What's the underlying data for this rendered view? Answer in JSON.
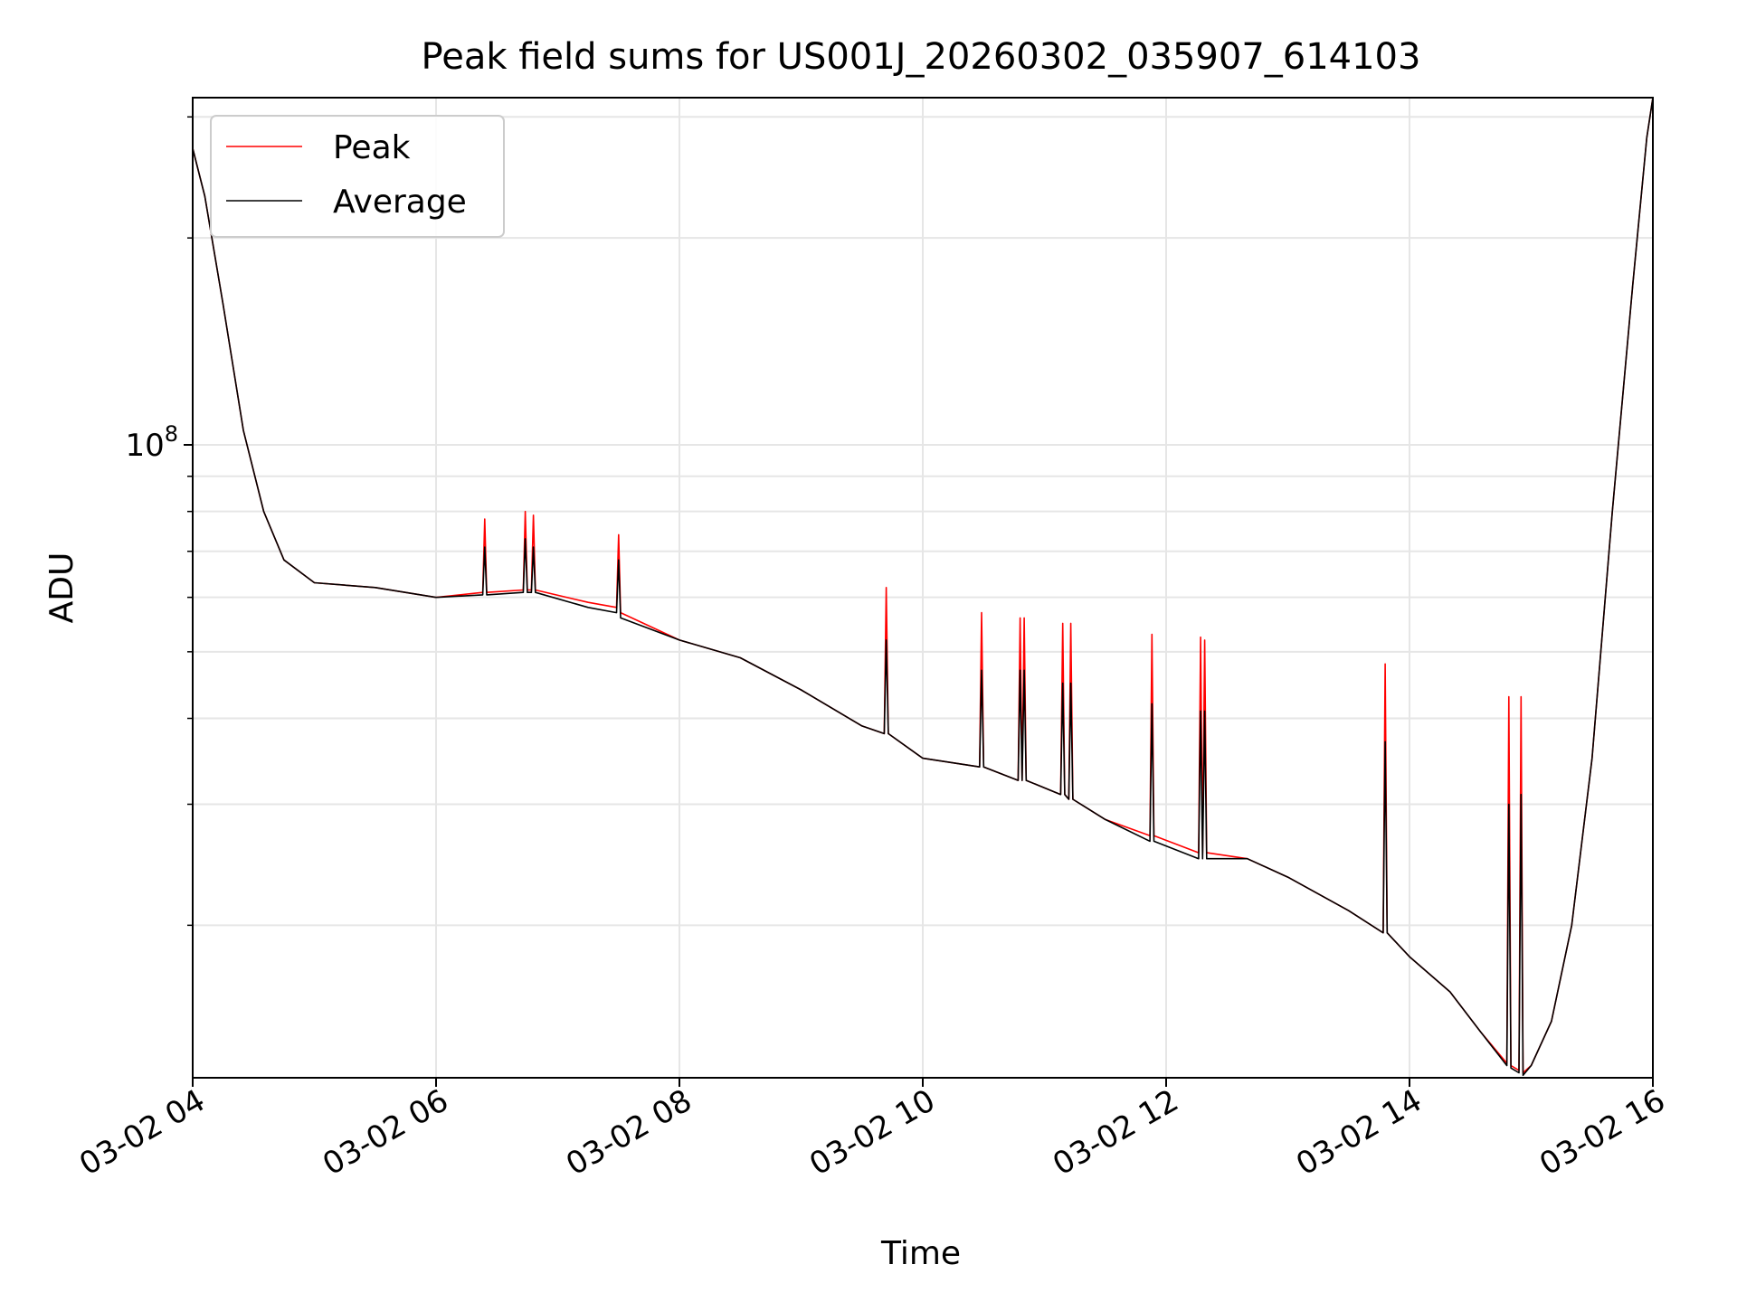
{
  "chart_data": {
    "type": "line",
    "title": "Peak field sums for US001J_20260302_035907_614103",
    "xlabel": "Time",
    "ylabel": "ADU",
    "x_scale": "time",
    "y_scale": "log",
    "xlim": [
      "2026-03-02 04:00",
      "2026-03-02 16:00"
    ],
    "ylim": [
      12000000.0,
      320000000.0
    ],
    "x_ticks": [
      {
        "value": "2026-03-02 04:00",
        "label": "03-02 04"
      },
      {
        "value": "2026-03-02 06:00",
        "label": "03-02 06"
      },
      {
        "value": "2026-03-02 08:00",
        "label": "03-02 08"
      },
      {
        "value": "2026-03-02 10:00",
        "label": "03-02 10"
      },
      {
        "value": "2026-03-02 12:00",
        "label": "03-02 12"
      },
      {
        "value": "2026-03-02 14:00",
        "label": "03-02 14"
      },
      {
        "value": "2026-03-02 16:00",
        "label": "03-02 16"
      }
    ],
    "y_major_ticks": [
      {
        "value": 100000000,
        "label_base": "10",
        "label_exp": "8"
      }
    ],
    "y_minor_ticks": [
      20000000,
      30000000,
      40000000,
      50000000,
      60000000,
      70000000,
      80000000,
      90000000,
      200000000,
      300000000
    ],
    "grid": true,
    "legend_position": "top-left",
    "series": [
      {
        "name": "Peak",
        "color": "#ff0000",
        "x": [
          "2026-03-02 04:00",
          "2026-03-02 04:06",
          "2026-03-02 04:15",
          "2026-03-02 04:25",
          "2026-03-02 04:35",
          "2026-03-02 04:45",
          "2026-03-02 05:00",
          "2026-03-02 05:30",
          "2026-03-02 06:00",
          "2026-03-02 06:23",
          "2026-03-02 06:24",
          "2026-03-02 06:25",
          "2026-03-02 06:43",
          "2026-03-02 06:44",
          "2026-03-02 06:45",
          "2026-03-02 06:47",
          "2026-03-02 06:48",
          "2026-03-02 06:49",
          "2026-03-02 07:15",
          "2026-03-02 07:29",
          "2026-03-02 07:30",
          "2026-03-02 07:31",
          "2026-03-02 08:00",
          "2026-03-02 08:30",
          "2026-03-02 09:00",
          "2026-03-02 09:30",
          "2026-03-02 09:41",
          "2026-03-02 09:42",
          "2026-03-02 09:43",
          "2026-03-02 10:00",
          "2026-03-02 10:28",
          "2026-03-02 10:29",
          "2026-03-02 10:30",
          "2026-03-02 10:47",
          "2026-03-02 10:48",
          "2026-03-02 10:49",
          "2026-03-02 10:50",
          "2026-03-02 10:51",
          "2026-03-02 11:08",
          "2026-03-02 11:09",
          "2026-03-02 11:10",
          "2026-03-02 11:12",
          "2026-03-02 11:13",
          "2026-03-02 11:14",
          "2026-03-02 11:30",
          "2026-03-02 11:52",
          "2026-03-02 11:53",
          "2026-03-02 11:54",
          "2026-03-02 12:16",
          "2026-03-02 12:17",
          "2026-03-02 12:18",
          "2026-03-02 12:19",
          "2026-03-02 12:20",
          "2026-03-02 12:40",
          "2026-03-02 13:00",
          "2026-03-02 13:30",
          "2026-03-02 13:47",
          "2026-03-02 13:48",
          "2026-03-02 13:49",
          "2026-03-02 14:00",
          "2026-03-02 14:20",
          "2026-03-02 14:35",
          "2026-03-02 14:48",
          "2026-03-02 14:49",
          "2026-03-02 14:50",
          "2026-03-02 14:54",
          "2026-03-02 14:55",
          "2026-03-02 14:56",
          "2026-03-02 15:00",
          "2026-03-02 15:10",
          "2026-03-02 15:20",
          "2026-03-02 15:30",
          "2026-03-02 15:40",
          "2026-03-02 15:50",
          "2026-03-02 15:57",
          "2026-03-02 16:00"
        ],
        "y": [
          270000000,
          230000000,
          160000000,
          105000000,
          80000000,
          68000000,
          63000000,
          62000000,
          60000000,
          61000000,
          78000000,
          61000000,
          61500000,
          80000000,
          61500000,
          61500000,
          79000000,
          61500000,
          59000000,
          58000000,
          74000000,
          57000000,
          52000000,
          49000000,
          44000000,
          39000000,
          38000000,
          62000000,
          38000000,
          35000000,
          34000000,
          57000000,
          34000000,
          32500000,
          56000000,
          32500000,
          56000000,
          32500000,
          31000000,
          55000000,
          31000000,
          30500000,
          55000000,
          30500000,
          28500000,
          27000000,
          53000000,
          27000000,
          25500000,
          52500000,
          25500000,
          52000000,
          25500000,
          25000000,
          23500000,
          21000000,
          19500000,
          48000000,
          19500000,
          18000000,
          16000000,
          14000000,
          12600000,
          43000000,
          12500000,
          12300000,
          43000000,
          12200000,
          12500000,
          14500000,
          20000000,
          35000000,
          80000000,
          170000000,
          280000000,
          320000000
        ]
      },
      {
        "name": "Average",
        "color": "#000000",
        "x": [
          "2026-03-02 04:00",
          "2026-03-02 04:06",
          "2026-03-02 04:15",
          "2026-03-02 04:25",
          "2026-03-02 04:35",
          "2026-03-02 04:45",
          "2026-03-02 05:00",
          "2026-03-02 05:30",
          "2026-03-02 06:00",
          "2026-03-02 06:23",
          "2026-03-02 06:24",
          "2026-03-02 06:25",
          "2026-03-02 06:43",
          "2026-03-02 06:44",
          "2026-03-02 06:45",
          "2026-03-02 06:47",
          "2026-03-02 06:48",
          "2026-03-02 06:49",
          "2026-03-02 07:15",
          "2026-03-02 07:29",
          "2026-03-02 07:30",
          "2026-03-02 07:31",
          "2026-03-02 08:00",
          "2026-03-02 08:30",
          "2026-03-02 09:00",
          "2026-03-02 09:30",
          "2026-03-02 09:41",
          "2026-03-02 09:42",
          "2026-03-02 09:43",
          "2026-03-02 10:00",
          "2026-03-02 10:28",
          "2026-03-02 10:29",
          "2026-03-02 10:30",
          "2026-03-02 10:47",
          "2026-03-02 10:48",
          "2026-03-02 10:49",
          "2026-03-02 10:50",
          "2026-03-02 10:51",
          "2026-03-02 11:08",
          "2026-03-02 11:09",
          "2026-03-02 11:10",
          "2026-03-02 11:12",
          "2026-03-02 11:13",
          "2026-03-02 11:14",
          "2026-03-02 11:30",
          "2026-03-02 11:52",
          "2026-03-02 11:53",
          "2026-03-02 11:54",
          "2026-03-02 12:16",
          "2026-03-02 12:17",
          "2026-03-02 12:18",
          "2026-03-02 12:19",
          "2026-03-02 12:20",
          "2026-03-02 12:40",
          "2026-03-02 13:00",
          "2026-03-02 13:30",
          "2026-03-02 13:47",
          "2026-03-02 13:48",
          "2026-03-02 13:49",
          "2026-03-02 14:00",
          "2026-03-02 14:20",
          "2026-03-02 14:35",
          "2026-03-02 14:48",
          "2026-03-02 14:49",
          "2026-03-02 14:50",
          "2026-03-02 14:54",
          "2026-03-02 14:55",
          "2026-03-02 14:56",
          "2026-03-02 15:00",
          "2026-03-02 15:10",
          "2026-03-02 15:20",
          "2026-03-02 15:30",
          "2026-03-02 15:40",
          "2026-03-02 15:50",
          "2026-03-02 15:57",
          "2026-03-02 16:00"
        ],
        "y": [
          270000000,
          230000000,
          160000000,
          105000000,
          80000000,
          68000000,
          63000000,
          62000000,
          60000000,
          60500000,
          71000000,
          60500000,
          61000000,
          73000000,
          61000000,
          61000000,
          71000000,
          61000000,
          58000000,
          57000000,
          68000000,
          56000000,
          52000000,
          49000000,
          44000000,
          39000000,
          38000000,
          52000000,
          38000000,
          35000000,
          34000000,
          47000000,
          34000000,
          32500000,
          47000000,
          32500000,
          47000000,
          32500000,
          31000000,
          45000000,
          31000000,
          30500000,
          45000000,
          30500000,
          28500000,
          26500000,
          42000000,
          26500000,
          25000000,
          41000000,
          25000000,
          41000000,
          25000000,
          25000000,
          23500000,
          21000000,
          19500000,
          37000000,
          19500000,
          18000000,
          16000000,
          14000000,
          12500000,
          30000000,
          12400000,
          12200000,
          31000000,
          12100000,
          12500000,
          14500000,
          20000000,
          35000000,
          80000000,
          170000000,
          280000000,
          320000000
        ]
      }
    ]
  }
}
